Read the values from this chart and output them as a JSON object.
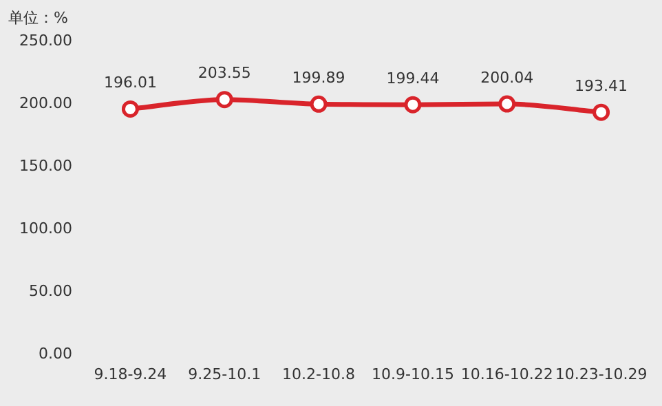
{
  "chart_data": {
    "type": "line",
    "ylabel": "单位：%",
    "categories": [
      "9.18-9.24",
      "9.25-10.1",
      "10.2-10.8",
      "10.9-10.15",
      "10.16-10.22",
      "10.23-10.29"
    ],
    "series": [
      {
        "color": "#d9242b",
        "values": [
          196.01,
          203.55,
          199.89,
          199.44,
          200.04,
          193.41
        ]
      }
    ],
    "ylim": [
      0,
      250
    ],
    "yticks": [
      {
        "value": 0,
        "label": "0.00"
      },
      {
        "value": 50,
        "label": "50.00"
      },
      {
        "value": 100,
        "label": "100.00"
      },
      {
        "value": 150,
        "label": "150.00"
      },
      {
        "value": 200,
        "label": "200.00"
      },
      {
        "value": 250,
        "label": "250.00"
      }
    ],
    "grid": false,
    "legend": false,
    "marker": "circle",
    "line_style": "solid",
    "data_labels": true
  }
}
